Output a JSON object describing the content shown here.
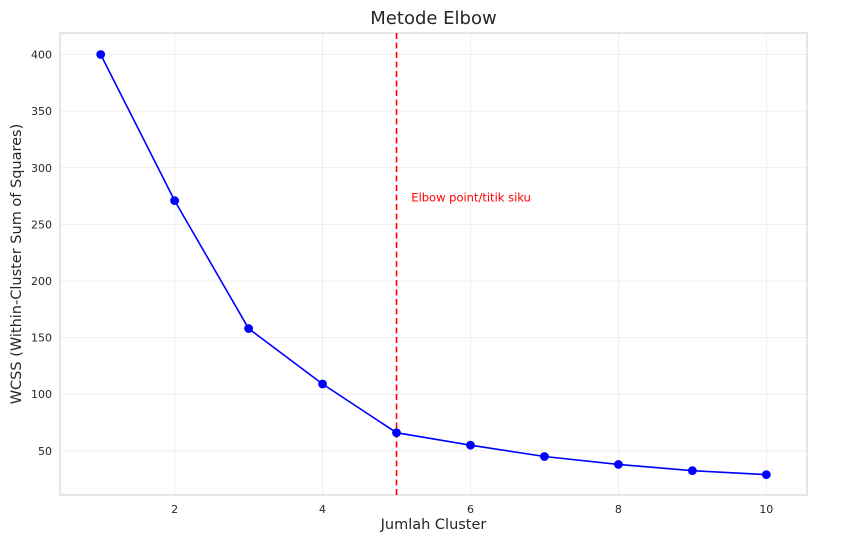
{
  "chart_data": {
    "type": "line",
    "title": "Metode Elbow",
    "xlabel": "Jumlah Cluster",
    "ylabel": "WCSS (Within-Cluster Sum of Squares)",
    "x": [
      1,
      2,
      3,
      4,
      5,
      6,
      7,
      8,
      9,
      10
    ],
    "series": [
      {
        "values": [
          400,
          271,
          158,
          109,
          66,
          55,
          45,
          38,
          32.5,
          29
        ]
      }
    ],
    "xlim": [
      0.45,
      10.55
    ],
    "ylim": [
      11,
      419
    ],
    "xticks": [
      2,
      4,
      6,
      8,
      10
    ],
    "yticks": [
      50,
      100,
      150,
      200,
      250,
      300,
      350,
      400
    ],
    "grid": true,
    "vline": {
      "x": 5,
      "color": "#ff0000",
      "style": "dashed"
    },
    "annotation": {
      "text": "Elbow point/titik siku",
      "x": 5.2,
      "y": 270,
      "color": "#ff0000"
    },
    "colors": {
      "series": "#0000ff",
      "vline": "#ff0000",
      "grid": "#ebebeb",
      "frame": "#cccccc"
    }
  }
}
